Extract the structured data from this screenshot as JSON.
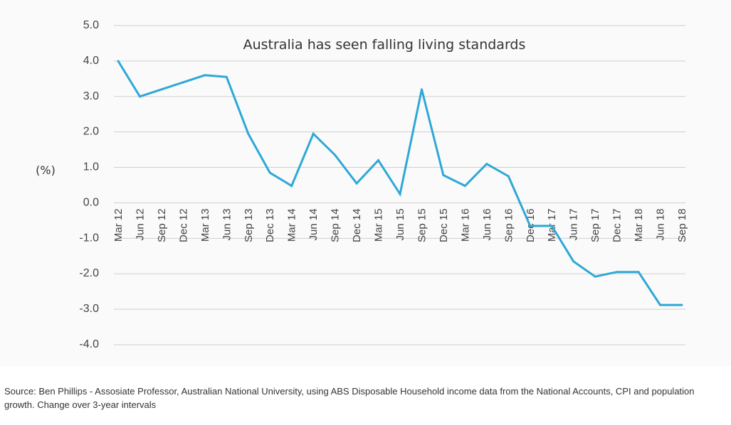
{
  "chart_data": {
    "type": "line",
    "title": "Australia has seen falling living standards",
    "ylabel": "(%)",
    "xlabel": "",
    "ylim": [
      -4.0,
      5.0
    ],
    "yticks": [
      "5.0",
      "4.0",
      "3.0",
      "2.0",
      "1.0",
      "0.0",
      "-1.0",
      "-2.0",
      "-3.0",
      "-4.0"
    ],
    "grid": true,
    "categories": [
      "Mar 12",
      "Jun 12",
      "Sep 12",
      "Dec 12",
      "Mar 13",
      "Jun 13",
      "Sep 13",
      "Dec 13",
      "Mar 14",
      "Jun 14",
      "Sep 14",
      "Dec 14",
      "Mar 15",
      "Jun 15",
      "Sep 15",
      "Dec 15",
      "Mar 16",
      "Jun 16",
      "Sep 16",
      "Dec 16",
      "Mar 17",
      "Jun 17",
      "Sep 17",
      "Dec 17",
      "Mar 18",
      "Jun 18",
      "Sep 18"
    ],
    "series": [
      {
        "color": "#2ea8d6",
        "values": [
          4.0,
          3.0,
          3.2,
          3.4,
          3.6,
          3.55,
          1.95,
          0.85,
          0.48,
          1.95,
          1.35,
          0.55,
          1.2,
          0.25,
          3.2,
          0.78,
          0.48,
          1.1,
          0.75,
          -0.65,
          -0.65,
          -1.65,
          -2.08,
          -1.95,
          -1.95,
          -2.88,
          -2.88
        ]
      }
    ]
  },
  "source_note": "Source: Ben Phillips - Assosiate Professor, Australian National University, using ABS Disposable Household income data from the National Accounts, CPI and population growth. Change over 3-year intervals"
}
